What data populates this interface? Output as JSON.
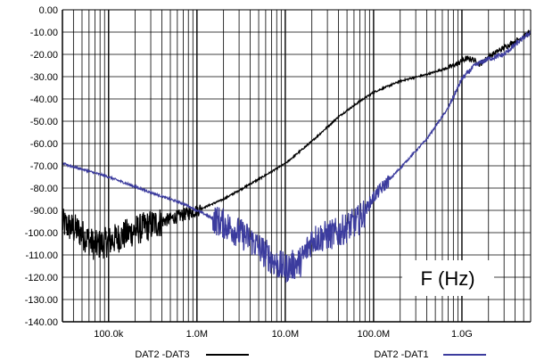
{
  "chart_data": {
    "type": "line",
    "title": "",
    "xlabel": "",
    "ylabel": "",
    "x_scale": "log",
    "xlim": [
      30000,
      6000000000
    ],
    "ylim": [
      -140,
      0
    ],
    "grid": true,
    "y_ticks": [
      "0.00",
      "-10.00",
      "-20.00",
      "-30.00",
      "-40.00",
      "-50.00",
      "-60.00",
      "-70.00",
      "-80.00",
      "-90.00",
      "-100.00",
      "-110.00",
      "-120.00",
      "-130.00",
      "-140.00"
    ],
    "x_ticks": [
      {
        "value": 100000,
        "label": "100.0k"
      },
      {
        "value": 1000000,
        "label": "1.0M"
      },
      {
        "value": 10000000,
        "label": "10.0M"
      },
      {
        "value": 100000000,
        "label": "100.0M"
      },
      {
        "value": 1000000000,
        "label": "1.0G"
      }
    ],
    "annotation": "F (Hz)",
    "legend_position": "bottom",
    "series": [
      {
        "name": "DAT2 -DAT3",
        "color": "#000000",
        "noisy": true,
        "points": [
          [
            30000,
            -96
          ],
          [
            45000,
            -99
          ],
          [
            70000,
            -106
          ],
          [
            100000,
            -104
          ],
          [
            200000,
            -99
          ],
          [
            400000,
            -95
          ],
          [
            700000,
            -92
          ],
          [
            1000000,
            -90
          ],
          [
            2000000,
            -85
          ],
          [
            3000000,
            -81
          ],
          [
            5000000,
            -76
          ],
          [
            10000000,
            -69
          ],
          [
            20000000,
            -59
          ],
          [
            40000000,
            -48
          ],
          [
            70000000,
            -41
          ],
          [
            100000000,
            -37
          ],
          [
            200000000,
            -32
          ],
          [
            400000000,
            -29
          ],
          [
            700000000,
            -26
          ],
          [
            900000000,
            -24
          ],
          [
            1100000000,
            -22
          ],
          [
            1300000000,
            -22
          ],
          [
            1600000000,
            -24.5
          ],
          [
            2000000000,
            -21
          ],
          [
            3000000000,
            -17
          ],
          [
            4500000000,
            -13
          ],
          [
            6000000000,
            -10
          ]
        ]
      },
      {
        "name": "DAT2 -DAT1",
        "color": "#3c3c9e",
        "noisy": true,
        "points": [
          [
            30000,
            -69
          ],
          [
            100000,
            -75
          ],
          [
            300000,
            -82
          ],
          [
            700000,
            -87
          ],
          [
            1000000,
            -90
          ],
          [
            2000000,
            -96
          ],
          [
            4000000,
            -103
          ],
          [
            8000000,
            -114
          ],
          [
            10000000,
            -116
          ],
          [
            15000000,
            -113
          ],
          [
            20000000,
            -103
          ],
          [
            40000000,
            -100
          ],
          [
            70000000,
            -94
          ],
          [
            100000000,
            -84
          ],
          [
            200000000,
            -71
          ],
          [
            400000000,
            -58
          ],
          [
            700000000,
            -44
          ],
          [
            1000000000,
            -31
          ],
          [
            1400000000,
            -25
          ],
          [
            2000000000,
            -22
          ],
          [
            3000000000,
            -20
          ],
          [
            4500000000,
            -14
          ],
          [
            6000000000,
            -10
          ]
        ]
      }
    ]
  }
}
